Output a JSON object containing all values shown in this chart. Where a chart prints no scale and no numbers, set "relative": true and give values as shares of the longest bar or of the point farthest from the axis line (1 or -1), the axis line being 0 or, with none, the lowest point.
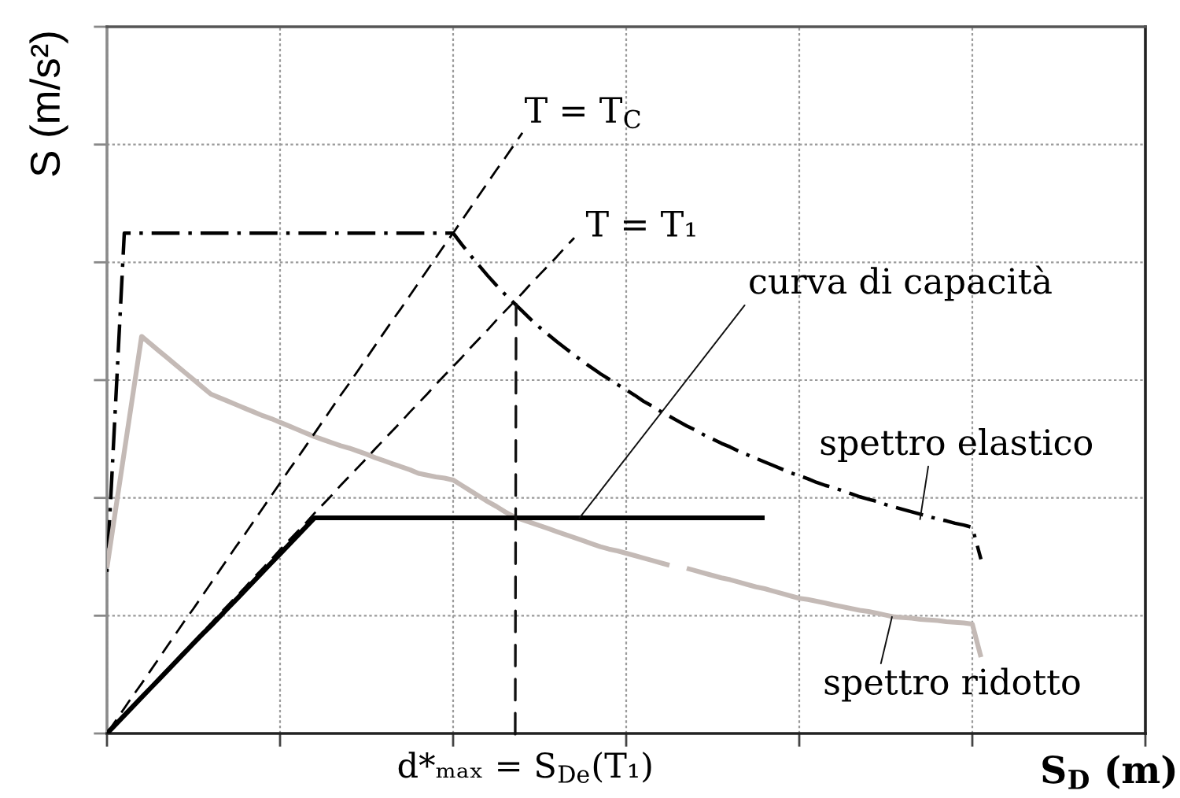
{
  "chart_data": {
    "type": "line",
    "relative": true,
    "xlabel": "S$_{D}$ (m)",
    "ylabel": "S (m/s²)",
    "grid": true,
    "tick_labels": false,
    "categories": [
      null,
      null,
      null,
      null,
      null,
      null,
      null,
      null,
      null,
      null,
      null,
      null,
      null,
      null,
      null,
      null,
      null,
      null,
      null,
      null,
      null,
      null,
      null,
      null,
      null,
      null,
      null,
      null,
      null,
      null,
      null,
      null,
      null,
      null,
      null,
      null,
      null,
      null,
      null,
      null,
      null,
      null,
      null,
      null,
      null,
      null,
      null,
      null,
      null,
      null,
      null,
      null,
      null,
      null,
      null,
      null,
      null,
      null,
      null,
      null,
      null,
      null,
      null,
      null,
      null,
      null,
      null,
      null,
      null,
      null,
      null,
      null,
      null,
      null,
      null,
      null,
      null,
      null,
      null,
      null,
      null,
      null,
      null,
      null,
      null,
      null,
      null,
      null,
      null,
      null,
      null,
      null,
      null,
      null,
      null,
      null,
      null,
      null,
      null,
      null,
      null,
      null,
      null,
      null,
      null,
      null,
      null,
      null,
      null,
      null,
      null,
      null,
      null,
      null,
      null,
      null,
      null,
      null,
      null,
      null,
      null
    ],
    "series": [
      {
        "color": "#000000",
        "line_style": "dashdot",
        "values": [
          0.269,
          0.551,
          0.833,
          0.833,
          0.833,
          0.833,
          0.833,
          0.833,
          0.833,
          0.833,
          0.833,
          0.833,
          0.833,
          0.833,
          0.833,
          0.833,
          0.833,
          0.833,
          0.833,
          0.833,
          0.833,
          0.833,
          0.833,
          0.833,
          0.833,
          0.833,
          0.833,
          0.833,
          0.833,
          0.833,
          0.833,
          0.833,
          0.833,
          0.833,
          0.833,
          0.833,
          0.833,
          0.833,
          0.833,
          0.833,
          0.833,
          0.814,
          0.796,
          0.779,
          0.762,
          0.746,
          0.731,
          0.717,
          0.703,
          0.689,
          0.676,
          0.664,
          0.652,
          0.641,
          0.63,
          0.619,
          0.609,
          0.599,
          0.59,
          0.581,
          0.572,
          0.563,
          0.553,
          0.545,
          0.536,
          0.528,
          0.52,
          0.512,
          0.505,
          0.497,
          0.49,
          0.483,
          0.477,
          0.47,
          0.464,
          0.458,
          0.452,
          0.446,
          0.44,
          0.434,
          0.429,
          0.424,
          0.418,
          0.413,
          0.409,
          0.404,
          0.399,
          0.394,
          0.39,
          0.386,
          0.381,
          0.377,
          0.373,
          0.369,
          0.365,
          0.361,
          0.357,
          0.354,
          0.35,
          0.347,
          0.343,
          0.29,
          null,
          null,
          null,
          null,
          null,
          null,
          null,
          null,
          null,
          null,
          null,
          null,
          null,
          null,
          null,
          null,
          null,
          null,
          null
        ]
      },
      {
        "color": "#c4bab6",
        "line_style": "solid",
        "values": [
          0.276,
          0.373,
          0.469,
          0.565,
          0.661,
          0.649,
          0.637,
          0.625,
          0.613,
          0.601,
          0.589,
          0.577,
          0.565,
          0.559,
          0.553,
          0.547,
          0.541,
          0.535,
          0.529,
          0.524,
          0.518,
          0.512,
          0.506,
          0.5,
          0.494,
          0.489,
          0.484,
          0.479,
          0.475,
          0.47,
          0.465,
          0.459,
          0.454,
          0.449,
          0.444,
          0.439,
          0.433,
          0.43,
          0.427,
          0.425,
          0.422,
          0.413,
          0.404,
          0.395,
          0.386,
          0.378,
          0.369,
          0.361,
          0.356,
          0.351,
          0.346,
          0.341,
          0.336,
          0.331,
          0.326,
          0.321,
          0.316,
          0.311,
          0.307,
          0.304,
          0.3,
          0.296,
          0.292,
          0.288,
          0.284,
          0.28,
          null,
          0.275,
          0.271,
          0.267,
          0.263,
          0.259,
          0.256,
          0.252,
          0.248,
          0.244,
          0.241,
          0.237,
          0.233,
          0.229,
          0.225,
          0.223,
          0.22,
          0.217,
          0.214,
          0.211,
          0.208,
          0.205,
          0.203,
          0.2,
          0.197,
          0.194,
          0.193,
          0.192,
          0.19,
          0.189,
          0.188,
          0.186,
          0.185,
          0.184,
          0.182,
          0.127,
          null,
          null,
          null,
          null,
          null,
          null,
          null,
          null,
          null,
          null,
          null,
          null,
          null,
          null,
          null,
          null,
          null,
          null,
          null
        ]
      },
      {
        "color": "#000000",
        "line_style": "solid",
        "values": [
          0,
          0.015,
          0.03,
          0.045,
          0.06,
          0.075,
          0.09,
          0.105,
          0.12,
          0.135,
          0.15,
          0.165,
          0.179,
          0.194,
          0.209,
          0.224,
          0.239,
          0.254,
          0.269,
          0.284,
          0.299,
          0.314,
          0.329,
          0.344,
          0.359,
          0.359,
          0.359,
          0.359,
          0.359,
          0.359,
          0.359,
          0.359,
          0.359,
          0.359,
          0.359,
          0.359,
          0.359,
          0.359,
          0.359,
          0.359,
          0.359,
          0.359,
          0.359,
          0.359,
          0.359,
          0.359,
          0.359,
          0.359,
          0.359,
          0.359,
          0.359,
          0.359,
          0.359,
          0.359,
          0.359,
          0.359,
          0.359,
          0.359,
          0.359,
          0.359,
          0.359,
          0.359,
          0.359,
          0.359,
          0.359,
          0.359,
          0.359,
          0.359,
          0.359,
          0.359,
          0.359,
          0.359,
          0.359,
          0.359,
          0.359,
          0.359,
          0.359,
          null,
          null,
          null,
          null,
          null,
          null,
          null,
          null,
          null,
          null,
          null,
          null,
          null,
          null,
          null,
          null,
          null,
          null,
          null,
          null,
          null,
          null,
          null,
          null,
          null,
          null,
          null,
          null,
          null,
          null,
          null,
          null,
          null,
          null,
          null,
          null,
          null,
          null,
          null,
          null,
          null,
          null,
          null,
          null
        ]
      },
      {
        "color": "#000000",
        "line_style": "dashed",
        "values": [
          0,
          0.021,
          0.042,
          0.063,
          0.083,
          0.104,
          0.125,
          0.146,
          0.167,
          0.188,
          0.208,
          0.229,
          0.25,
          0.271,
          0.292,
          0.313,
          0.333,
          0.354,
          0.375,
          0.396,
          0.417,
          0.438,
          0.458,
          0.479,
          0.5,
          0.521,
          0.542,
          0.563,
          0.583,
          0.604,
          0.625,
          0.646,
          0.667,
          0.688,
          0.708,
          0.729,
          0.75,
          0.771,
          0.792,
          0.813,
          0.833,
          0.854,
          0.875,
          0.896,
          0.917,
          0.938,
          0.958,
          0.979,
          1,
          null,
          null,
          null,
          null,
          null,
          null,
          null,
          null,
          null,
          null,
          null,
          null,
          null,
          null,
          null,
          null,
          null,
          null,
          null,
          null,
          null,
          null,
          null,
          null,
          null,
          null,
          null,
          null,
          null,
          null,
          null,
          null,
          null,
          null,
          null,
          null,
          null,
          null,
          null,
          null,
          null,
          null,
          null,
          null,
          null,
          null,
          null,
          null,
          null,
          null,
          null,
          null,
          null,
          null,
          null,
          null,
          null,
          null,
          null,
          null,
          null,
          null,
          null,
          null,
          null,
          null,
          null,
          null,
          null,
          null,
          null,
          null
        ]
      },
      {
        "color": "#000000",
        "line_style": "dashed",
        "values": [
          0,
          0.015,
          0.031,
          0.046,
          0.061,
          0.076,
          0.092,
          0.107,
          0.122,
          0.138,
          0.153,
          0.168,
          0.183,
          0.199,
          0.214,
          0.229,
          0.244,
          0.26,
          0.275,
          0.29,
          0.306,
          0.321,
          0.336,
          0.351,
          0.367,
          0.382,
          0.397,
          0.413,
          0.428,
          0.443,
          0.458,
          0.474,
          0.489,
          0.504,
          0.519,
          0.535,
          0.55,
          0.565,
          0.581,
          0.596,
          0.611,
          0.626,
          0.642,
          0.657,
          0.672,
          0.688,
          0.703,
          0.718,
          0.733,
          0.749,
          0.764,
          0.779,
          0.794,
          0.81,
          0.825,
          null,
          null,
          null,
          null,
          null,
          null,
          null,
          null,
          null,
          null,
          null,
          null,
          null,
          null,
          null,
          null,
          null,
          null,
          null,
          null,
          null,
          null,
          null,
          null,
          null,
          null,
          null,
          null,
          null,
          null,
          null,
          null,
          null,
          null,
          null,
          null,
          null,
          null,
          null,
          null,
          null,
          null,
          null,
          null,
          null,
          null,
          null,
          null,
          null,
          null,
          null,
          null,
          null,
          null,
          null,
          null,
          null,
          null,
          null,
          null,
          null,
          null,
          null,
          null,
          null,
          null
        ]
      }
    ],
    "annotations": [
      "T = T$_{C}$",
      "T = T₁",
      "curva di capacità",
      "spettro elastico",
      "spettro ridotto",
      "d*ₘₐₓ = S$_{De}$(T₁)"
    ]
  }
}
